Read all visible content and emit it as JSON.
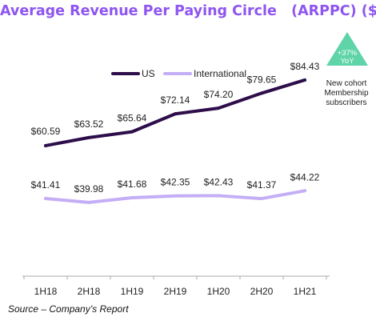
{
  "chart_data": {
    "type": "line",
    "title": "Average Revenue Per Paying Circle   (ARPPC) ($)",
    "categories": [
      "1H18",
      "2H18",
      "1H19",
      "2H19",
      "1H20",
      "2H20",
      "1H21"
    ],
    "series": [
      {
        "name": "US",
        "color": "#2e0e4a",
        "values": [
          60.59,
          63.52,
          65.64,
          72.14,
          74.2,
          79.65,
          84.43
        ],
        "labels": [
          "$60.59",
          "$63.52",
          "$65.64",
          "$72.14",
          "$74.20",
          "$79.65",
          "$84.43"
        ]
      },
      {
        "name": "International",
        "color": "#c4aef5",
        "values": [
          41.41,
          39.98,
          41.68,
          42.35,
          42.43,
          41.37,
          44.22
        ],
        "labels": [
          "$41.41",
          "$39.98",
          "$41.68",
          "$42.35",
          "$42.43",
          "$41.37",
          "$44.22"
        ]
      }
    ],
    "legend_position": "top",
    "grid": false,
    "badge": {
      "text_line1": "+37%",
      "text_line2": "YoY",
      "color": "#5fd4a8"
    },
    "annotation": [
      "New cohort",
      "Membership",
      "subscribers"
    ]
  },
  "source": "Source – Company’s Report"
}
